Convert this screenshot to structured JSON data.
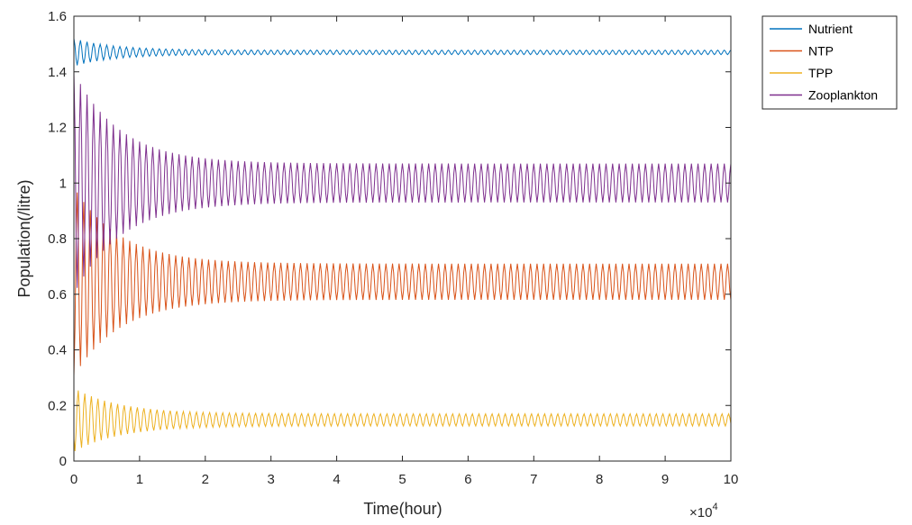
{
  "chart_data": {
    "type": "line",
    "xlabel": "Time(hour)",
    "ylabel": "Population(/litre)",
    "x_multiplier_label": "×10",
    "x_multiplier_exponent": "4",
    "xlim": [
      0,
      10
    ],
    "ylim": [
      0,
      1.6
    ],
    "x_ticks": [
      "0",
      "1",
      "2",
      "3",
      "4",
      "5",
      "6",
      "7",
      "8",
      "9",
      "10"
    ],
    "y_ticks": [
      "0",
      "0.2",
      "0.4",
      "0.6",
      "0.8",
      "1",
      "1.2",
      "1.4",
      "1.6"
    ],
    "grid": false,
    "legend_position": "outside-top-right",
    "oscillation_cycles": 100,
    "series": [
      {
        "name": "Nutrient",
        "color": "#0072BD",
        "start_value": 1.55,
        "mean": 1.47,
        "initial_amplitude": 0.05,
        "final_amplitude": 0.008,
        "decay": 0.6
      },
      {
        "name": "NTP",
        "color": "#D95319",
        "start_value": 0.3,
        "mean": 0.645,
        "initial_amplitude": 0.34,
        "final_amplitude": 0.065,
        "decay": 0.7
      },
      {
        "name": "TPP",
        "color": "#EDB120",
        "start_value": 0.08,
        "mean": 0.148,
        "initial_amplitude": 0.115,
        "final_amplitude": 0.022,
        "decay": 0.7
      },
      {
        "name": "Zooplankton",
        "color": "#7E2F8E",
        "start_value": 1.45,
        "mean": 1.0,
        "initial_amplitude": 0.4,
        "final_amplitude": 0.07,
        "decay": 0.7
      }
    ]
  }
}
